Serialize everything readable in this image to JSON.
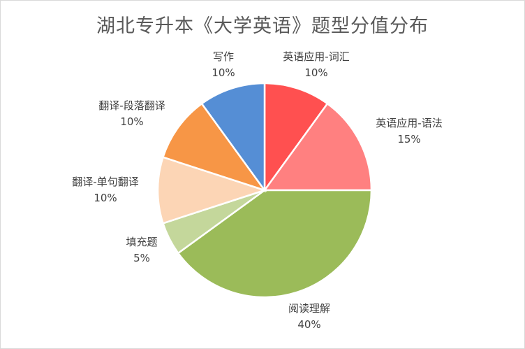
{
  "chart_data": {
    "type": "pie",
    "title": "湖北专升本《大学英语》题型分值分布",
    "slices": [
      {
        "label": "英语应用-词汇",
        "value": 10,
        "value_label": "10%",
        "color": "#ff5050"
      },
      {
        "label": "英语应用-语法",
        "value": 15,
        "value_label": "15%",
        "color": "#ff8080"
      },
      {
        "label": "阅读理解",
        "value": 40,
        "value_label": "40%",
        "color": "#9bbb59"
      },
      {
        "label": "填充题",
        "value": 5,
        "value_label": "5%",
        "color": "#c4d79b"
      },
      {
        "label": "翻译-单句翻译",
        "value": 10,
        "value_label": "10%",
        "color": "#fcd5b5"
      },
      {
        "label": "翻译-段落翻译",
        "value": 10,
        "value_label": "10%",
        "color": "#f79646"
      },
      {
        "label": "写作",
        "value": 10,
        "value_label": "10%",
        "color": "#558ed5"
      }
    ],
    "legend": "none",
    "start_angle": "12 o'clock, clockwise"
  }
}
